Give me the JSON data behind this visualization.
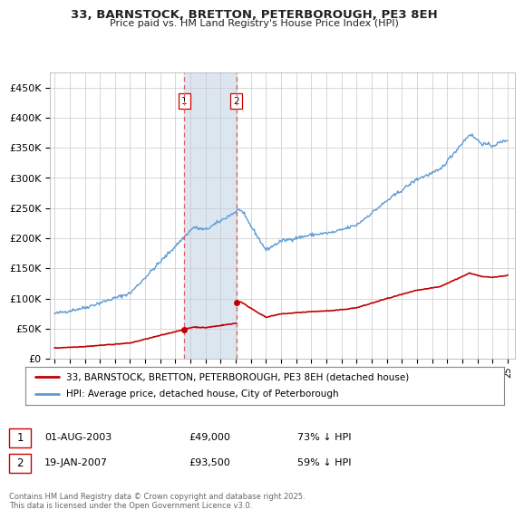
{
  "title": "33, BARNSTOCK, BRETTON, PETERBOROUGH, PE3 8EH",
  "subtitle": "Price paid vs. HM Land Registry's House Price Index (HPI)",
  "legend_line1": "33, BARNSTOCK, BRETTON, PETERBOROUGH, PE3 8EH (detached house)",
  "legend_line2": "HPI: Average price, detached house, City of Peterborough",
  "footnote": "Contains HM Land Registry data © Crown copyright and database right 2025.\nThis data is licensed under the Open Government Licence v3.0.",
  "transaction1_date": "01-AUG-2003",
  "transaction1_price": "£49,000",
  "transaction1_hpi": "73% ↓ HPI",
  "transaction2_date": "19-JAN-2007",
  "transaction2_price": "£93,500",
  "transaction2_hpi": "59% ↓ HPI",
  "hpi_color": "#5b9bd5",
  "price_color": "#c00000",
  "shaded_color": "#dce6f1",
  "vline_color": "#e06060",
  "background_color": "#ffffff",
  "grid_color": "#c8c8c8",
  "ylim": [
    0,
    475000
  ],
  "yticks": [
    0,
    50000,
    100000,
    150000,
    200000,
    250000,
    300000,
    350000,
    400000,
    450000
  ],
  "transaction1_x": 2003.58,
  "transaction2_x": 2007.05,
  "transaction1_y": 49000,
  "transaction2_y": 93500,
  "xmin": 1994.7,
  "xmax": 2025.5
}
